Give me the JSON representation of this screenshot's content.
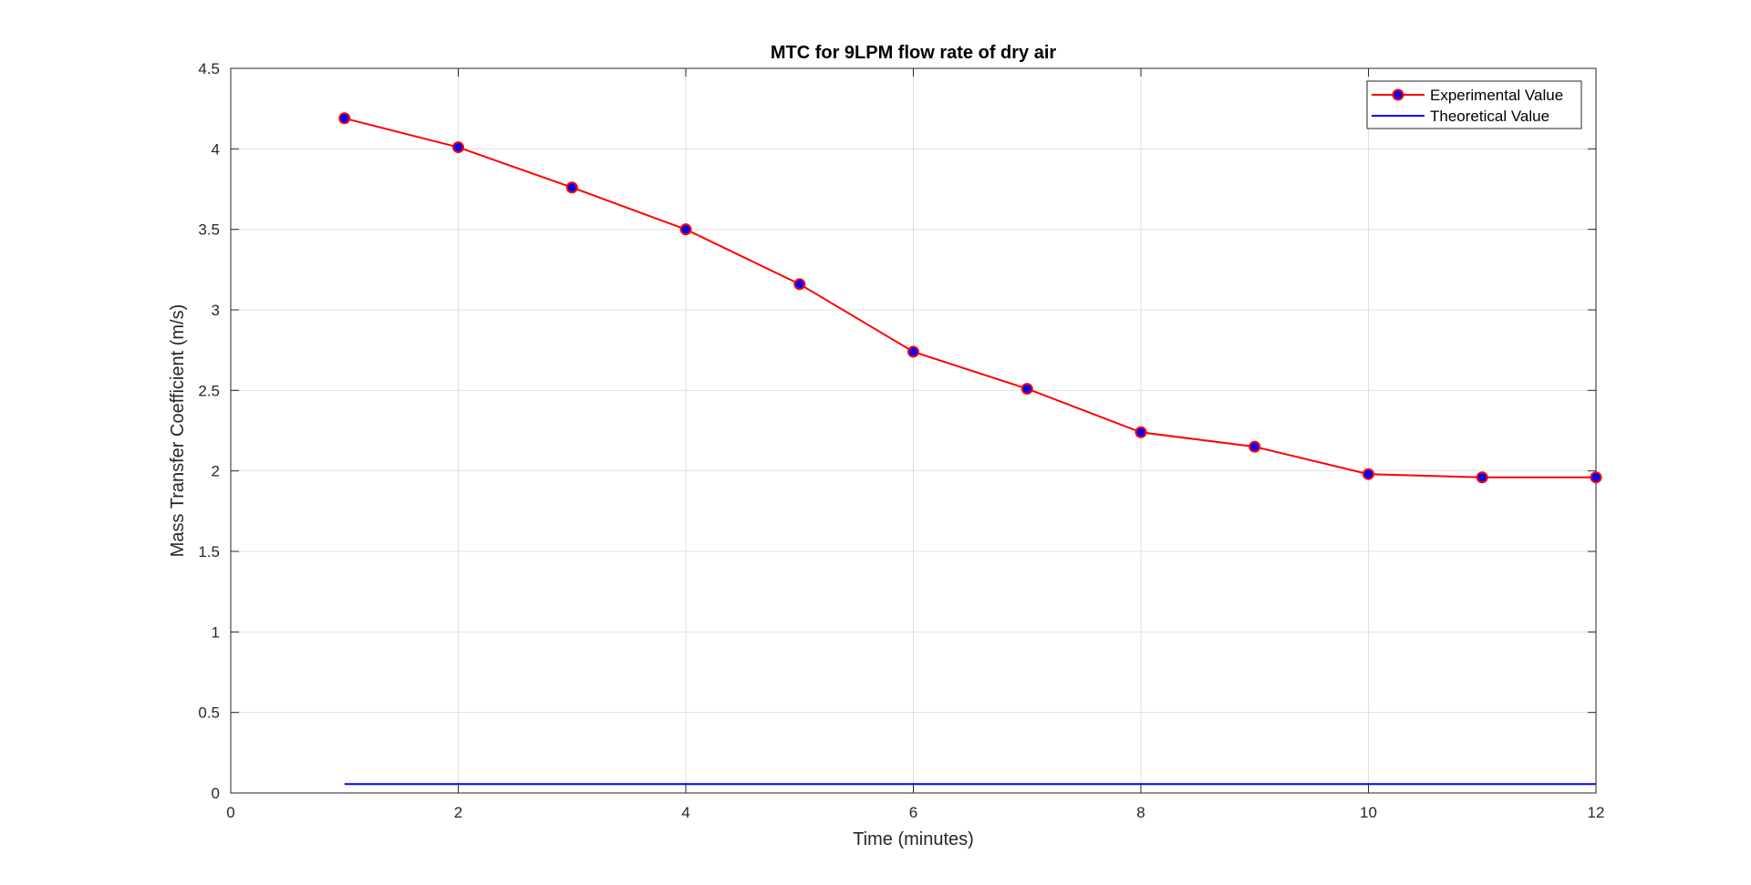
{
  "chart_data": {
    "type": "line",
    "title": "MTC for 9LPM flow rate of dry air",
    "xlabel": "Time (minutes)",
    "ylabel": "Mass Transfer Coefficient (m/s)",
    "xlim": [
      0,
      12
    ],
    "ylim": [
      0,
      4.5
    ],
    "xticks": [
      0,
      2,
      4,
      6,
      8,
      10,
      12
    ],
    "yticks": [
      0,
      0.5,
      1,
      1.5,
      2,
      2.5,
      3,
      3.5,
      4,
      4.5
    ],
    "xtick_labels": [
      "0",
      "2",
      "4",
      "6",
      "8",
      "10",
      "12"
    ],
    "ytick_labels": [
      "0",
      "0.5",
      "1",
      "1.5",
      "2",
      "2.5",
      "3",
      "3.5",
      "4",
      "4.5"
    ],
    "grid": true,
    "legend_position": "top-right",
    "series": [
      {
        "name": "Experimental Value",
        "color": "#ff0000",
        "marker_fill": "#0000ff",
        "marker": "circle",
        "x": [
          1,
          2,
          3,
          4,
          5,
          6,
          7,
          8,
          9,
          10,
          11,
          12
        ],
        "y": [
          4.19,
          4.01,
          3.76,
          3.5,
          3.16,
          2.74,
          2.51,
          2.24,
          2.15,
          1.98,
          1.96,
          1.96
        ]
      },
      {
        "name": "Theoretical Value",
        "color": "#0000ff",
        "marker": "none",
        "x": [
          1,
          2,
          3,
          4,
          5,
          6,
          7,
          8,
          9,
          10,
          11,
          12
        ],
        "y": [
          0.055,
          0.055,
          0.055,
          0.055,
          0.055,
          0.055,
          0.055,
          0.055,
          0.055,
          0.055,
          0.055,
          0.055
        ]
      }
    ]
  }
}
